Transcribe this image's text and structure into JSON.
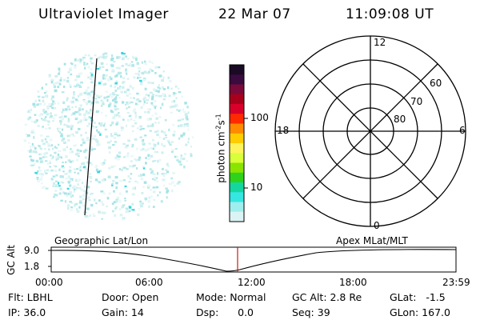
{
  "header": {
    "instrument": "Ultraviolet Imager",
    "date": "22 Mar 07",
    "time": "11:09:08 UT"
  },
  "colorbar": {
    "label": "photon cm-2s-1",
    "ticks": [
      "100",
      "10"
    ],
    "colors": [
      "#1a0a24",
      "#3a0b3e",
      "#7a0a3a",
      "#a8001c",
      "#d8002a",
      "#ff2a00",
      "#ff8a00",
      "#ffcc00",
      "#fff35c",
      "#d8ff3a",
      "#8ae400",
      "#2fd21a",
      "#14d7a0",
      "#36e6e0",
      "#9feeee",
      "#dcf3f3"
    ]
  },
  "polar_plot": {
    "labels_top": "12",
    "labels_bottom": "0",
    "labels_left": "18",
    "labels_right": "6",
    "lat_labels": [
      "60",
      "70",
      "80"
    ]
  },
  "orbit_plot": {
    "left_title": "Geographic Lat/Lon",
    "right_title": "Apex MLat/MLT",
    "y_axis_label": "GC Alt",
    "y_ticks": [
      "9.0",
      "1.8"
    ],
    "x_ticks": [
      "00:00",
      "06:00",
      "12:00",
      "18:00",
      "23:59"
    ],
    "marker_color": "#c81a1a"
  },
  "info": {
    "flt": "Flt: LBHL",
    "door": "Door: Open",
    "mode": "Mode: Normal",
    "gc_alt": "GC Alt: 2.8 Re",
    "glat": "GLat:   -1.5",
    "ip": "IP: 36.0",
    "gain": "Gain: 14",
    "dsp": "Dsp:      0.0",
    "seq": "Seq: 39",
    "glon": "GLon: 167.0"
  }
}
